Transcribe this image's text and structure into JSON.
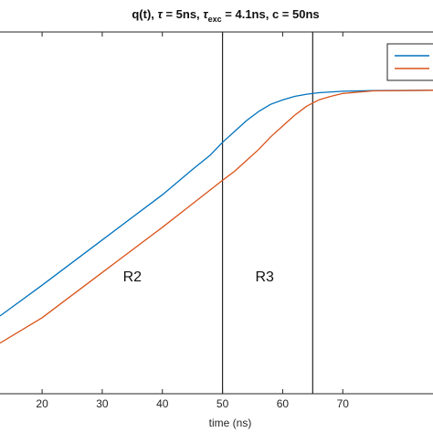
{
  "chart_data": {
    "type": "line",
    "title_parts": {
      "prefix": "q(t), ",
      "tau_symbol": "τ",
      "tau_value": " = 5ns, ",
      "tau_exc_symbol": "τ",
      "tau_exc_subscript": "exc",
      "tau_exc_value": " = 4.1ns, c = 50ns"
    },
    "xlabel": "time (ns)",
    "xlim": [
      13,
      85
    ],
    "ylim": [
      0,
      1
    ],
    "x_ticks": [
      20,
      30,
      40,
      50,
      60,
      70
    ],
    "x_tick_labels": [
      "20",
      "30",
      "40",
      "50",
      "60",
      "70"
    ],
    "grid": false,
    "legend_position": "top-right",
    "series": [
      {
        "color": "#0072BD",
        "points": [
          [
            13,
            0.215
          ],
          [
            20,
            0.3
          ],
          [
            30,
            0.425
          ],
          [
            40,
            0.55
          ],
          [
            45,
            0.62
          ],
          [
            48,
            0.66
          ],
          [
            50,
            0.695
          ],
          [
            52,
            0.725
          ],
          [
            54,
            0.755
          ],
          [
            56,
            0.78
          ],
          [
            58,
            0.8
          ],
          [
            60,
            0.812
          ],
          [
            62,
            0.822
          ],
          [
            64,
            0.828
          ],
          [
            66,
            0.832
          ],
          [
            70,
            0.836
          ],
          [
            75,
            0.838
          ],
          [
            85,
            0.839
          ]
        ]
      },
      {
        "color": "#D95319",
        "points": [
          [
            13,
            0.14
          ],
          [
            20,
            0.21
          ],
          [
            30,
            0.335
          ],
          [
            40,
            0.46
          ],
          [
            45,
            0.525
          ],
          [
            50,
            0.59
          ],
          [
            52,
            0.615
          ],
          [
            54,
            0.645
          ],
          [
            56,
            0.675
          ],
          [
            58,
            0.71
          ],
          [
            60,
            0.74
          ],
          [
            62,
            0.77
          ],
          [
            64,
            0.795
          ],
          [
            66,
            0.812
          ],
          [
            68,
            0.822
          ],
          [
            70,
            0.83
          ],
          [
            75,
            0.837
          ],
          [
            85,
            0.839
          ]
        ]
      }
    ],
    "vlines": [
      50,
      65
    ],
    "region_labels": [
      {
        "text": "R2",
        "x": 35,
        "y": 0.31
      },
      {
        "text": "R3",
        "x": 57,
        "y": 0.31
      }
    ]
  }
}
